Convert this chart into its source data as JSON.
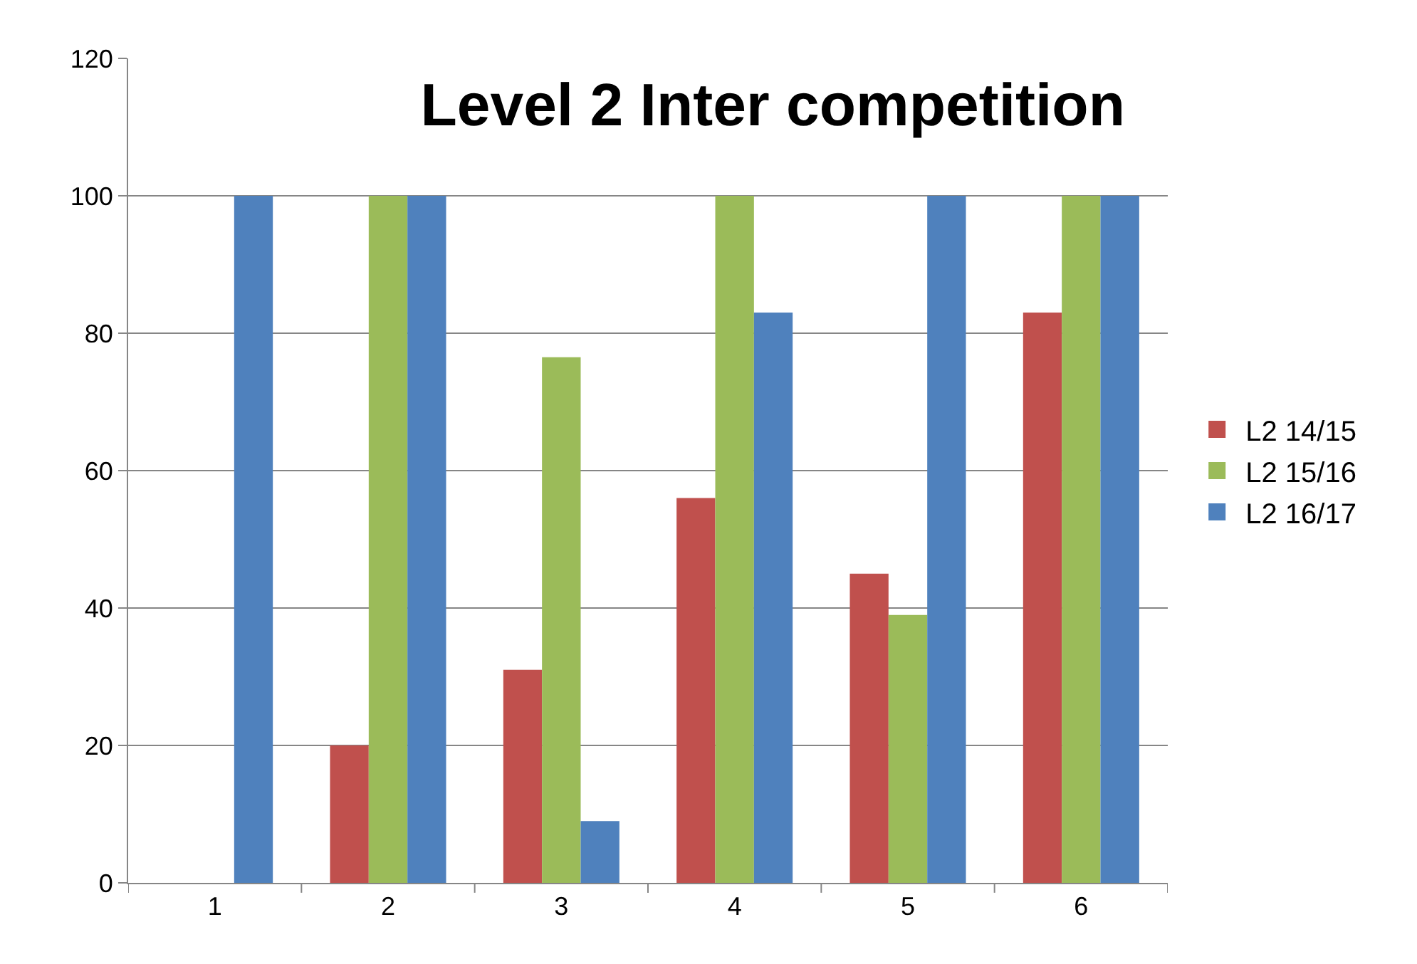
{
  "chart_data": {
    "type": "bar",
    "title": "Level 2 Inter competition",
    "categories": [
      "1",
      "2",
      "3",
      "4",
      "5",
      "6"
    ],
    "series": [
      {
        "name": "L2 14/15",
        "color": "#c0504d",
        "values": [
          0,
          20,
          31,
          56,
          45,
          83
        ]
      },
      {
        "name": "L2 15/16",
        "color": "#9bbb59",
        "values": [
          0,
          100,
          76.5,
          100,
          39,
          100
        ]
      },
      {
        "name": "L2 16/17",
        "color": "#4f81bd",
        "values": [
          100,
          100,
          9,
          83,
          100,
          100
        ]
      }
    ],
    "ylim": [
      0,
      120
    ],
    "yticks": [
      0,
      20,
      40,
      60,
      80,
      100,
      120
    ],
    "grid": "y",
    "legend": "right"
  }
}
